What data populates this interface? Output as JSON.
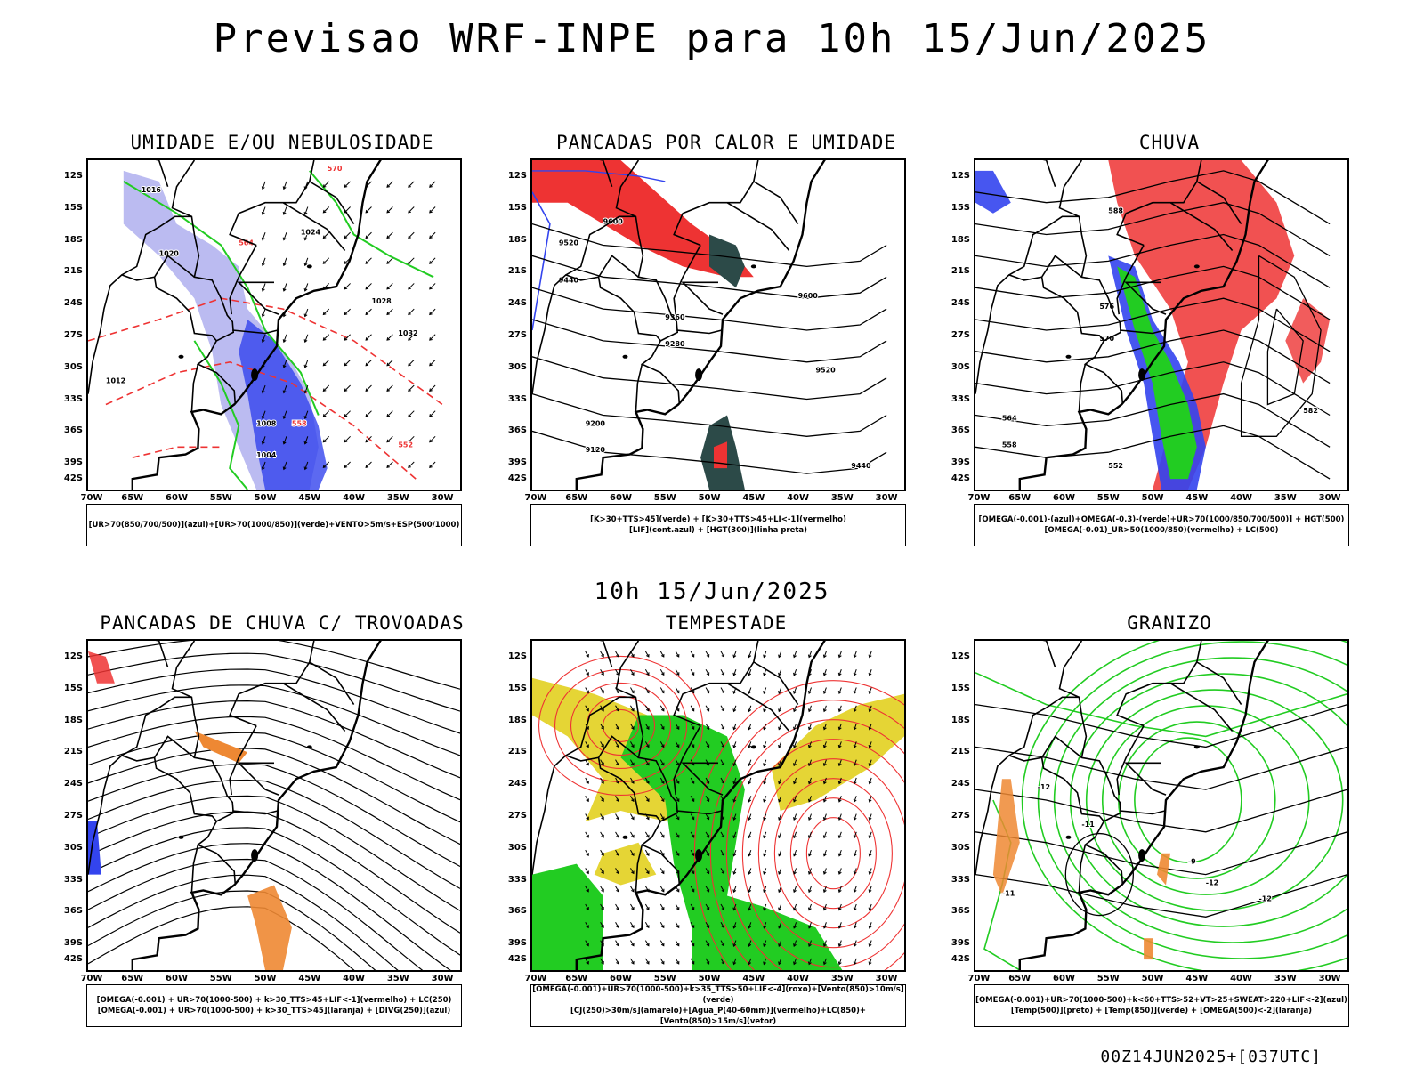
{
  "header": {
    "title": "Previsao WRF-INPE  para 10h 15/Jun/2025"
  },
  "mid_title": "10h 15/Jun/2025",
  "footer": "00Z14JUN2025+[037UTC]",
  "axes": {
    "lat_labels": [
      "12S",
      "15S",
      "18S",
      "21S",
      "24S",
      "27S",
      "30S",
      "33S",
      "36S",
      "39S",
      "42S"
    ],
    "lon_labels": [
      "70W",
      "65W",
      "60W",
      "55W",
      "50W",
      "45W",
      "40W",
      "35W",
      "30W"
    ]
  },
  "colors": {
    "blue": "#3344ee",
    "light_blue": "#b4b4f0",
    "green": "#22cc22",
    "red": "#ee3333",
    "orange": "#ee8833",
    "yellow": "#e5d535",
    "dark_teal": "#2c4a48"
  },
  "panels": [
    {
      "title": "UMIDADE E/OU NEBULOSIDADE",
      "legend": [
        "[UR>70(850/700/500)](azul)+[UR>70(1000/850)](verde)+VENTO>5m/s+ESP(500/1000)"
      ],
      "contour_labels": [
        "1016",
        "1020",
        "1024",
        "1028",
        "1032",
        "1012",
        "1008",
        "1004",
        "570",
        "564",
        "558",
        "552"
      ]
    },
    {
      "title": "PANCADAS POR CALOR E UMIDADE",
      "legend": [
        "[K>30+TTS>45](verde) + [K>30+TTS>45+LI<-1](vermelho)",
        "[LIF](cont.azul) + [HGT(300)](linha preta)"
      ],
      "contour_labels": [
        "9600",
        "9520",
        "9440",
        "9360",
        "9280",
        "9200",
        "9120"
      ]
    },
    {
      "title": "CHUVA",
      "legend": [
        "[OMEGA(-0.001)-(azul)+OMEGA(-0.3)-(verde)+UR>70(1000/850/700/500)] + HGT(500)",
        "[OMEGA(-0.01)_UR>50(1000/850)(vermelho) + LC(500)"
      ],
      "contour_labels": [
        "588",
        "582",
        "576",
        "570",
        "564",
        "558",
        "552"
      ]
    },
    {
      "title": "PANCADAS DE CHUVA C/ TROVOADAS",
      "legend": [
        "[OMEGA(-0.001) + UR>70(1000-500) + k>30_TTS>45+LIF<-1](vermelho) + LC(250)",
        "[OMEGA(-0.001) + UR>70(1000-500) + k>30_TTS>45](laranja) + [DIVG(250)](azul)"
      ]
    },
    {
      "title": "TEMPESTADE",
      "legend": [
        "[OMEGA(-0.001)+UR>70(1000-500)+k>35_TTS>50+LIF<-4](roxo)+[Vento(850)>10m/s](verde)",
        "[CJ(250)>30m/s](amarelo)+[Agua_P(40-60mm)](vermelho)+LC(850)+[Vento(850)>15m/s](vetor)"
      ]
    },
    {
      "title": "GRANIZO",
      "legend": [
        "[OMEGA(-0.001)+UR>70(1000-500)+k<60+TTS>52+VT>25+SWEAT>220+LIF<-2](azul)",
        "[Temp(500)](preto) + [Temp(850)](verde) + [OMEGA(500)<-2](laranja)"
      ],
      "contour_labels": [
        "-12",
        "-11",
        "-9"
      ]
    }
  ]
}
